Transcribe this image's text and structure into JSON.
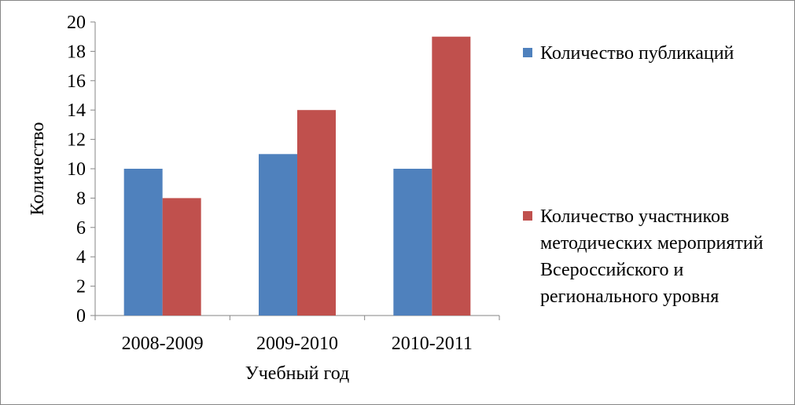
{
  "chart_data": {
    "type": "bar",
    "categories": [
      "2008-2009",
      "2009-2010",
      "2010-2011"
    ],
    "series": [
      {
        "name": "Количество публикаций",
        "values": [
          10,
          11,
          10
        ],
        "color": "#4f81bd"
      },
      {
        "name": "Количество участников методических мероприятий Всероссийского  и регионального  уровня",
        "values": [
          8,
          14,
          19
        ],
        "color": "#c0504d"
      }
    ],
    "xlabel": "Учебный год",
    "ylabel": "Количество",
    "ylim": [
      0,
      20
    ],
    "yticks": [
      0,
      2,
      4,
      6,
      8,
      10,
      12,
      14,
      16,
      18,
      20
    ],
    "grid": false,
    "legend_position": "right"
  }
}
